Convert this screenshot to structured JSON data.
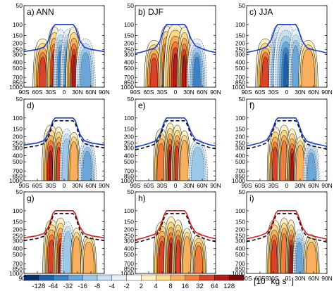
{
  "chart_data": {
    "type": "contour",
    "units_label_parts": [
      "[10",
      "9",
      " kg s",
      "-1",
      "]"
    ],
    "x_ticks": [
      "90S",
      "60S",
      "30S",
      "0",
      "30N",
      "60N",
      "90N"
    ],
    "x_values": [
      -90,
      -60,
      -30,
      0,
      30,
      60,
      90
    ],
    "y_ticks": [
      50,
      100,
      150,
      200,
      250,
      300,
      400,
      500,
      700,
      850,
      1000
    ],
    "y_range": [
      1000,
      50
    ],
    "y_scale": "log-pressure",
    "colorbar": {
      "levels": [
        -128,
        -64,
        -32,
        -16,
        -8,
        -4,
        -2,
        2,
        4,
        8,
        16,
        32,
        64,
        128
      ],
      "colors": [
        "#08306b",
        "#1f5fa8",
        "#3b82c4",
        "#6aa6d8",
        "#9ec8e8",
        "#c7dff1",
        "#e6f0fa",
        "#ffffff",
        "#fdf1c4",
        "#fcd88a",
        "#f8b05e",
        "#ef7d3c",
        "#d8432a",
        "#b01c1c",
        "#7a0c0c"
      ]
    },
    "panels": [
      {
        "label": "a) ANN",
        "row": 0,
        "col": 0,
        "line_colors": [
          "#1a3ecc"
        ],
        "dash_colors": []
      },
      {
        "label": "b) DJF",
        "row": 0,
        "col": 1,
        "line_colors": [
          "#1a3ecc"
        ],
        "dash_colors": []
      },
      {
        "label": "c) JJA",
        "row": 0,
        "col": 2,
        "line_colors": [
          "#1a3ecc"
        ],
        "dash_colors": []
      },
      {
        "label": "d)",
        "row": 1,
        "col": 0,
        "line_colors": [
          "#1a3ecc"
        ],
        "dash_colors": [
          "#111111"
        ]
      },
      {
        "label": "e)",
        "row": 1,
        "col": 1,
        "line_colors": [
          "#1a3ecc"
        ],
        "dash_colors": [
          "#111111"
        ]
      },
      {
        "label": "f)",
        "row": 1,
        "col": 2,
        "line_colors": [
          "#1a3ecc"
        ],
        "dash_colors": [
          "#111111"
        ]
      },
      {
        "label": "g)",
        "row": 2,
        "col": 0,
        "line_colors": [
          "#d62020"
        ],
        "dash_colors": [
          "#111111"
        ]
      },
      {
        "label": "h)",
        "row": 2,
        "col": 1,
        "line_colors": [
          "#d62020"
        ],
        "dash_colors": [
          "#111111"
        ]
      },
      {
        "label": "i)",
        "row": 2,
        "col": 2,
        "line_colors": [
          "#d62020"
        ],
        "dash_colors": [
          "#111111"
        ]
      }
    ],
    "tropopause_pressure": {
      "lat": [
        -90,
        -75,
        -60,
        -45,
        -35,
        -25,
        -20,
        20,
        25,
        35,
        45,
        60,
        75,
        90
      ],
      "ann": [
        270,
        260,
        250,
        230,
        180,
        110,
        100,
        100,
        110,
        180,
        230,
        250,
        260,
        270
      ],
      "djf": [
        290,
        275,
        255,
        235,
        185,
        115,
        100,
        100,
        110,
        170,
        220,
        245,
        265,
        280
      ],
      "jja": [
        280,
        265,
        250,
        225,
        175,
        110,
        100,
        100,
        115,
        185,
        235,
        255,
        268,
        285
      ]
    }
  }
}
